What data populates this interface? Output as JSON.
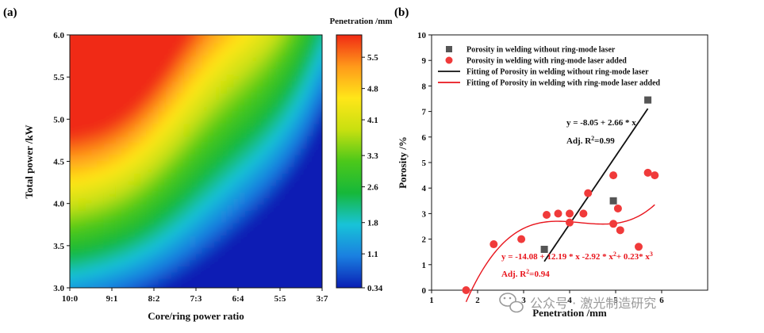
{
  "watermark": "公众号 · 激光制造研究",
  "chart_data": [
    {
      "panel": "(a)",
      "type": "heatmap",
      "xlabel": "Core/ring power ratio",
      "ylabel": "Total power /kW",
      "x_categories": [
        "10:0",
        "9:1",
        "8:2",
        "7:3",
        "6:4",
        "5:5",
        "3:7"
      ],
      "y_ticks": [
        "3.0",
        "3.5",
        "4.0",
        "4.5",
        "5.0",
        "5.5",
        "6.0"
      ],
      "ylim": [
        3.0,
        6.0
      ],
      "colorbar": {
        "title": "Penetration /mm",
        "ticks": [
          "0.34",
          "1.1",
          "1.8",
          "2.6",
          "3.3",
          "4.1",
          "4.8",
          "5.5"
        ],
        "range": [
          0.34,
          6.0
        ],
        "colors": [
          "#0a1fb4",
          "#1a7fe0",
          "#18c3d8",
          "#16b83a",
          "#4cc81a",
          "#c8e010",
          "#ffe619",
          "#ff9a1a",
          "#f02a14"
        ]
      }
    },
    {
      "panel": "(b)",
      "type": "scatter",
      "xlabel": "Penetration /mm",
      "ylabel": "Porosity /%",
      "xlim": [
        1,
        7
      ],
      "ylim": [
        0,
        10
      ],
      "x_ticks": [
        "1",
        "2",
        "3",
        "4",
        "5",
        "6"
      ],
      "y_ticks": [
        "0",
        "1",
        "2",
        "3",
        "4",
        "5",
        "6",
        "7",
        "8",
        "9",
        "10"
      ],
      "legend": [
        {
          "label": "Porosity in welding without ring-mode laser",
          "kind": "square",
          "color": "#555555"
        },
        {
          "label": "Porosity in welding with ring-mode laser added",
          "kind": "circle",
          "color": "#f03a3a"
        },
        {
          "label": "Fitting of Porosity in welding without ring-mode laser",
          "kind": "line",
          "color": "#111111"
        },
        {
          "label": "Fitting of Porosity in welding with ring-mode laser added",
          "kind": "line",
          "color": "#e8141c"
        }
      ],
      "series": [
        {
          "name": "Porosity in welding without ring-mode laser",
          "marker": "square",
          "points": [
            [
              3.45,
              1.6
            ],
            [
              4.95,
              3.5
            ],
            [
              5.7,
              7.45
            ]
          ]
        },
        {
          "name": "Porosity in welding with ring-mode laser added",
          "marker": "circle",
          "points": [
            [
              1.75,
              0.0
            ],
            [
              2.35,
              1.8
            ],
            [
              2.95,
              2.0
            ],
            [
              3.5,
              2.95
            ],
            [
              3.75,
              3.0
            ],
            [
              4.0,
              2.65
            ],
            [
              4.0,
              3.0
            ],
            [
              4.3,
              3.0
            ],
            [
              4.4,
              3.8
            ],
            [
              4.95,
              4.5
            ],
            [
              5.05,
              3.2
            ],
            [
              4.95,
              2.6
            ],
            [
              5.1,
              2.35
            ],
            [
              5.5,
              1.7
            ],
            [
              5.7,
              4.6
            ],
            [
              5.85,
              4.5
            ]
          ]
        }
      ],
      "fits": [
        {
          "name": "Fitting of Porosity in welding without ring-mode laser",
          "coeffs": [
            -8.05,
            2.66
          ],
          "x_range": [
            3.45,
            5.7
          ],
          "equation": "y = -8.05 + 2.66 * x",
          "r2_prefix": "Adj. R",
          "r2_exp": "2",
          "r2_value": "=0.99"
        },
        {
          "name": "Fitting of Porosity in welding with ring-mode laser added",
          "coeffs": [
            -14.08,
            12.19,
            -2.92,
            0.23
          ],
          "x_range": [
            1.75,
            5.85
          ],
          "equation_parts": [
            "y = -14.08 + 12.19 * x -2.92 * x",
            "2",
            "+ 0.23* x",
            "3"
          ],
          "r2_prefix": "Adj. R",
          "r2_exp": "2",
          "r2_value": "=0.94"
        }
      ]
    }
  ]
}
